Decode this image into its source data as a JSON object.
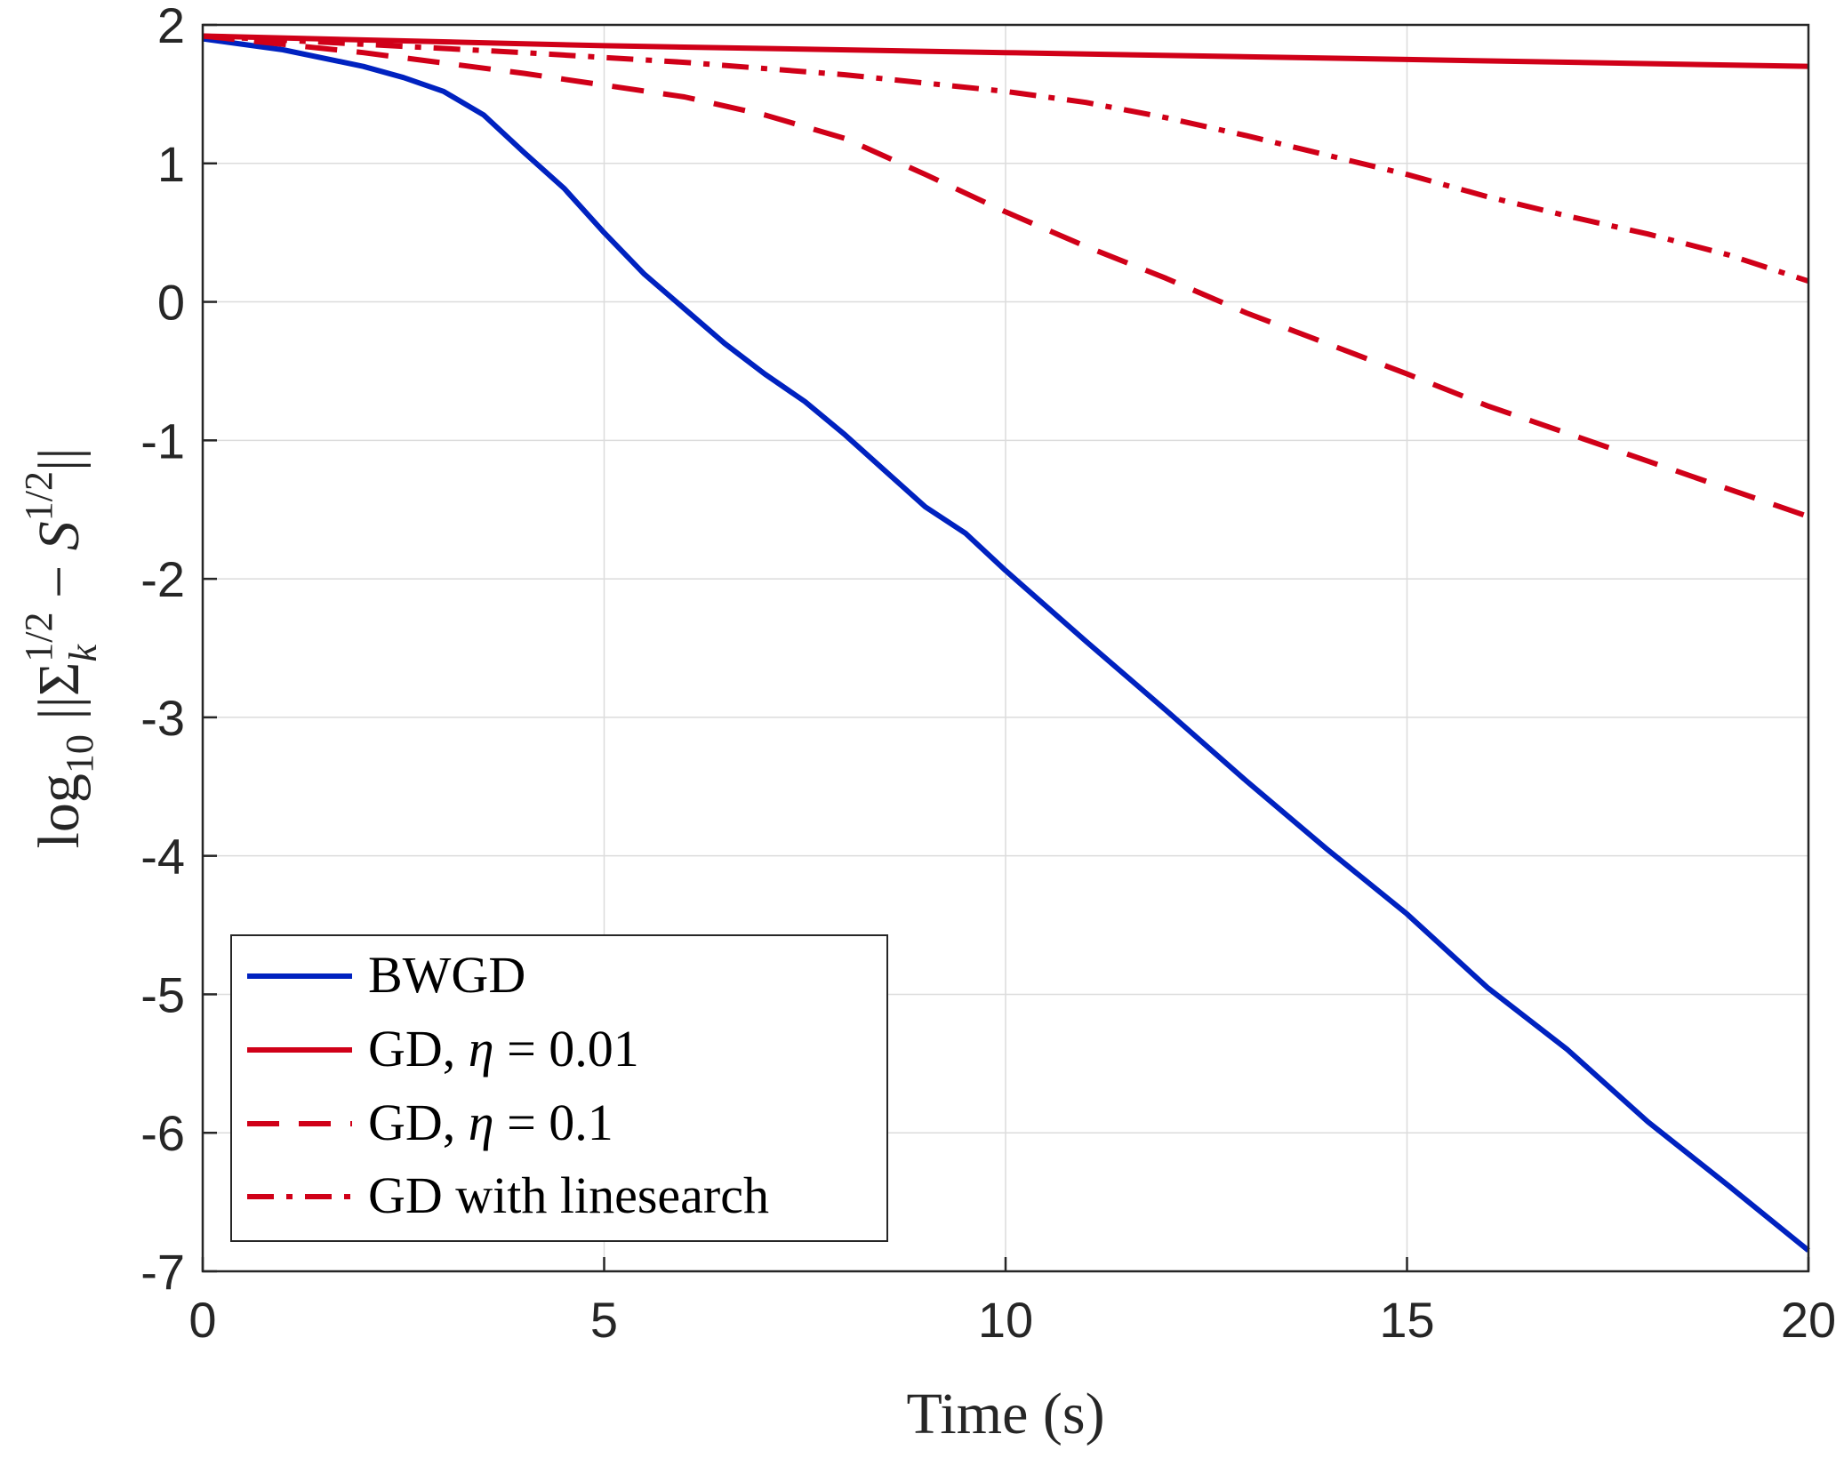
{
  "chart_data": {
    "type": "line",
    "title": "",
    "xlabel": "Time (s)",
    "ylabel": {
      "prefix": "log",
      "prefix_sub": "10",
      "sigma": "Σ",
      "sigma_sup": "1/2",
      "sigma_sub": "k",
      "minus": "−",
      "s": "S",
      "s_sup": "1/2"
    },
    "xlim": [
      0,
      20
    ],
    "ylim": [
      -7,
      2
    ],
    "xticks": [
      0,
      5,
      10,
      15,
      20
    ],
    "xtick_labels": [
      "0",
      "5",
      "10",
      "15",
      "20"
    ],
    "yticks": [
      2,
      1,
      0,
      -1,
      -2,
      -3,
      -4,
      -5,
      -6,
      -7
    ],
    "ytick_labels": [
      "2",
      "1",
      "0",
      "-1",
      "-2",
      "-3",
      "-4",
      "-5",
      "-6",
      "-7"
    ],
    "grid": true,
    "legend_position": "bottom-left",
    "series": [
      {
        "name": "BWGD",
        "color": "#0022c0",
        "style": "solid",
        "x": [
          0,
          1,
          2,
          2.5,
          3,
          3.5,
          4,
          4.5,
          5,
          5.5,
          6,
          6.5,
          7,
          7.5,
          8,
          8.5,
          9,
          9.5,
          10,
          11,
          12,
          13,
          14,
          15,
          16,
          17,
          18,
          19,
          20
        ],
        "y": [
          1.9,
          1.82,
          1.7,
          1.62,
          1.52,
          1.35,
          1.08,
          0.82,
          0.5,
          0.2,
          -0.05,
          -0.3,
          -0.52,
          -0.72,
          -0.96,
          -1.22,
          -1.48,
          -1.67,
          -1.94,
          -2.45,
          -2.95,
          -3.46,
          -3.95,
          -4.42,
          -4.95,
          -5.4,
          -5.92,
          -6.38,
          -6.85
        ]
      },
      {
        "name": "GD, η = 0.01",
        "label_prefix": "GD, ",
        "label_math": "η",
        "label_suffix": " = 0.01",
        "color": "#d00018",
        "style": "solid",
        "x": [
          0,
          5,
          10,
          15,
          20
        ],
        "y": [
          1.92,
          1.85,
          1.8,
          1.75,
          1.7
        ]
      },
      {
        "name": "GD, η = 0.1",
        "label_prefix": "GD, ",
        "label_math": "η",
        "label_suffix": " = 0.1",
        "color": "#d00018",
        "style": "dashed",
        "x": [
          0,
          2,
          4,
          6,
          7,
          8,
          9,
          10,
          11,
          12,
          13,
          14,
          15,
          16,
          17,
          18,
          19,
          20
        ],
        "y": [
          1.92,
          1.8,
          1.65,
          1.48,
          1.35,
          1.18,
          0.92,
          0.65,
          0.4,
          0.17,
          -0.08,
          -0.3,
          -0.52,
          -0.75,
          -0.95,
          -1.15,
          -1.35,
          -1.55
        ]
      },
      {
        "name": "GD with linesearch",
        "color": "#d00018",
        "style": "dashdot",
        "x": [
          0,
          2,
          4,
          6,
          8,
          10,
          11,
          12,
          13,
          14,
          15,
          16,
          17,
          18,
          19,
          20
        ],
        "y": [
          1.92,
          1.86,
          1.8,
          1.73,
          1.64,
          1.52,
          1.44,
          1.33,
          1.2,
          1.06,
          0.92,
          0.76,
          0.62,
          0.49,
          0.34,
          0.15
        ]
      }
    ]
  }
}
